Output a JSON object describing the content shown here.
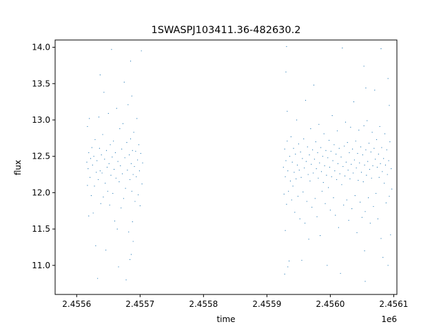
{
  "chart_data": {
    "type": "scatter",
    "title": "1SWASPJ103411.36-482630.2",
    "xlabel": "time",
    "ylabel": "flux",
    "x_offset_label": "1e6",
    "xlim": [
      2455566.0,
      2456105.0
    ],
    "ylim": [
      10.6,
      14.1
    ],
    "grid": false,
    "x_ticks": [
      {
        "value": 2455600,
        "label": "2.4556"
      },
      {
        "value": 2455700,
        "label": "2.4557"
      },
      {
        "value": 2455800,
        "label": "2.4558"
      },
      {
        "value": 2455900,
        "label": "2.4559"
      },
      {
        "value": 2456000,
        "label": "2.4560"
      },
      {
        "value": 2456100,
        "label": "2.4561"
      }
    ],
    "y_ticks": [
      {
        "value": 11.0,
        "label": "11.0"
      },
      {
        "value": 11.5,
        "label": "11.5"
      },
      {
        "value": 12.0,
        "label": "12.0"
      },
      {
        "value": 12.5,
        "label": "12.5"
      },
      {
        "value": 13.0,
        "label": "13.0"
      },
      {
        "value": 13.5,
        "label": "13.5"
      },
      {
        "value": 14.0,
        "label": "14.0"
      }
    ],
    "series": [
      {
        "color": "#1f77b4",
        "marker_size": 1,
        "points": [
          [
            2455616,
            12.42
          ],
          [
            2455617,
            12.1
          ],
          [
            2455617,
            12.91
          ],
          [
            2455618,
            12.33
          ],
          [
            2455619,
            11.68
          ],
          [
            2455619,
            12.55
          ],
          [
            2455620,
            13.02
          ],
          [
            2455621,
            12.21
          ],
          [
            2455622,
            12.47
          ],
          [
            2455623,
            11.96
          ],
          [
            2455624,
            12.62
          ],
          [
            2455625,
            12.38
          ],
          [
            2455626,
            11.72
          ],
          [
            2455627,
            12.5
          ],
          [
            2455628,
            12.09
          ],
          [
            2455629,
            12.73
          ],
          [
            2455630,
            11.27
          ],
          [
            2455631,
            12.28
          ],
          [
            2455632,
            12.44
          ],
          [
            2455633,
            10.82
          ],
          [
            2455634,
            12.18
          ],
          [
            2455635,
            13.04
          ],
          [
            2455636,
            12.61
          ],
          [
            2455637,
            12.3
          ],
          [
            2455637,
            13.62
          ],
          [
            2455638,
            11.85
          ],
          [
            2455639,
            12.52
          ],
          [
            2455640,
            12.27
          ],
          [
            2455641,
            12.8
          ],
          [
            2455642,
            11.94
          ],
          [
            2455643,
            13.38
          ],
          [
            2455644,
            12.46
          ],
          [
            2455645,
            12.13
          ],
          [
            2455646,
            11.21
          ],
          [
            2455647,
            12.58
          ],
          [
            2455648,
            12.35
          ],
          [
            2455649,
            12.02
          ],
          [
            2455650,
            13.09
          ],
          [
            2455651,
            12.4
          ],
          [
            2455652,
            11.83
          ],
          [
            2455653,
            12.66
          ],
          [
            2455654,
            12.24
          ],
          [
            2455655,
            13.97
          ],
          [
            2455656,
            12.49
          ],
          [
            2455657,
            11.99
          ],
          [
            2455658,
            12.71
          ],
          [
            2455659,
            12.32
          ],
          [
            2455660,
            11.61
          ],
          [
            2455661,
            12.55
          ],
          [
            2455662,
            12.2
          ],
          [
            2455663,
            13.16
          ],
          [
            2455664,
            11.5
          ],
          [
            2455665,
            12.43
          ],
          [
            2455666,
            10.98
          ],
          [
            2455667,
            12.15
          ],
          [
            2455668,
            12.88
          ],
          [
            2455669,
            12.37
          ],
          [
            2455670,
            11.79
          ],
          [
            2455671,
            12.6
          ],
          [
            2455672,
            12.26
          ],
          [
            2455673,
            12.95
          ],
          [
            2455674,
            11.92
          ],
          [
            2455675,
            13.52
          ],
          [
            2455676,
            12.48
          ],
          [
            2455677,
            12.06
          ],
          [
            2455678,
            10.8
          ],
          [
            2455679,
            12.69
          ],
          [
            2455680,
            12.31
          ],
          [
            2455681,
            13.21
          ],
          [
            2455682,
            11.46
          ],
          [
            2455683,
            12.52
          ],
          [
            2455684,
            11.08
          ],
          [
            2455684,
            12.18
          ],
          [
            2455685,
            13.81
          ],
          [
            2455685,
            12.74
          ],
          [
            2455686,
            11.15
          ],
          [
            2455686,
            12.4
          ],
          [
            2455687,
            12.02
          ],
          [
            2455687,
            13.33
          ],
          [
            2455688,
            11.6
          ],
          [
            2455688,
            12.58
          ],
          [
            2455689,
            12.25
          ],
          [
            2455689,
            11.33
          ],
          [
            2455690,
            12.83
          ],
          [
            2455691,
            12.36
          ],
          [
            2455692,
            11.88
          ],
          [
            2455693,
            12.57
          ],
          [
            2455694,
            12.22
          ],
          [
            2455695,
            13.02
          ],
          [
            2455696,
            12.45
          ],
          [
            2455697,
            11.97
          ],
          [
            2455698,
            12.66
          ],
          [
            2455699,
            12.3
          ],
          [
            2455700,
            11.82
          ],
          [
            2455701,
            12.54
          ],
          [
            2455702,
            13.95
          ],
          [
            2455703,
            12.12
          ],
          [
            2455704,
            12.41
          ],
          [
            2455926,
            12.35
          ],
          [
            2455927,
            11.98
          ],
          [
            2455928,
            10.88
          ],
          [
            2455928,
            12.6
          ],
          [
            2455929,
            12.22
          ],
          [
            2455929,
            11.48
          ],
          [
            2455930,
            13.66
          ],
          [
            2455930,
            12.44
          ],
          [
            2455931,
            14.01
          ],
          [
            2455931,
            11.84
          ],
          [
            2455932,
            12.71
          ],
          [
            2455932,
            13.12
          ],
          [
            2455933,
            10.98
          ],
          [
            2455933,
            12.3
          ],
          [
            2455934,
            12.02
          ],
          [
            2455935,
            11.06
          ],
          [
            2455936,
            12.5
          ],
          [
            2455937,
            12.16
          ],
          [
            2455938,
            12.77
          ],
          [
            2455939,
            11.9
          ],
          [
            2455940,
            12.42
          ],
          [
            2455941,
            12.09
          ],
          [
            2455942,
            12.61
          ],
          [
            2455943,
            12.28
          ],
          [
            2455944,
            11.73
          ],
          [
            2455945,
            12.53
          ],
          [
            2455946,
            12.19
          ],
          [
            2455947,
            13.0
          ],
          [
            2455948,
            12.38
          ],
          [
            2455949,
            11.95
          ],
          [
            2455950,
            12.67
          ],
          [
            2455951,
            12.31
          ],
          [
            2455952,
            11.64
          ],
          [
            2455953,
            12.56
          ],
          [
            2455954,
            12.21
          ],
          [
            2455955,
            11.07
          ],
          [
            2455956,
            12.47
          ],
          [
            2455957,
            12.01
          ],
          [
            2455958,
            12.74
          ],
          [
            2455959,
            12.34
          ],
          [
            2455960,
            11.58
          ],
          [
            2455961,
            13.27
          ],
          [
            2455962,
            12.43
          ],
          [
            2455963,
            11.88
          ],
          [
            2455964,
            12.63
          ],
          [
            2455965,
            12.25
          ],
          [
            2455966,
            11.36
          ],
          [
            2455967,
            12.52
          ],
          [
            2455968,
            12.16
          ],
          [
            2455969,
            12.88
          ],
          [
            2455970,
            12.39
          ],
          [
            2455971,
            11.8
          ],
          [
            2455972,
            12.59
          ],
          [
            2455973,
            12.27
          ],
          [
            2455974,
            13.48
          ],
          [
            2455975,
            12.46
          ],
          [
            2455976,
            11.92
          ],
          [
            2455977,
            12.7
          ],
          [
            2455978,
            12.33
          ],
          [
            2455979,
            11.67
          ],
          [
            2455980,
            12.55
          ],
          [
            2455981,
            12.2
          ],
          [
            2455982,
            12.94
          ],
          [
            2455983,
            12.41
          ],
          [
            2455984,
            11.41
          ],
          [
            2455985,
            12.62
          ],
          [
            2455986,
            12.29
          ],
          [
            2455987,
            12.02
          ],
          [
            2455988,
            12.5
          ],
          [
            2455989,
            12.14
          ],
          [
            2455990,
            12.81
          ],
          [
            2455991,
            12.37
          ],
          [
            2455992,
            11.85
          ],
          [
            2455993,
            12.58
          ],
          [
            2455994,
            12.24
          ],
          [
            2455995,
            11.0
          ],
          [
            2455996,
            12.48
          ],
          [
            2455997,
            12.07
          ],
          [
            2455998,
            12.72
          ],
          [
            2455999,
            12.35
          ],
          [
            2456000,
            11.76
          ],
          [
            2456001,
            12.57
          ],
          [
            2456002,
            12.22
          ],
          [
            2456003,
            13.06
          ],
          [
            2456004,
            12.44
          ],
          [
            2456005,
            11.93
          ],
          [
            2456006,
            12.66
          ],
          [
            2456007,
            12.3
          ],
          [
            2456008,
            11.69
          ],
          [
            2456009,
            12.53
          ],
          [
            2456010,
            12.18
          ],
          [
            2456011,
            12.85
          ],
          [
            2456012,
            12.4
          ],
          [
            2456013,
            11.52
          ],
          [
            2456014,
            12.61
          ],
          [
            2456015,
            12.26
          ],
          [
            2456016,
            10.89
          ],
          [
            2456017,
            12.49
          ],
          [
            2456018,
            12.11
          ],
          [
            2456019,
            13.99
          ],
          [
            2456020,
            12.36
          ],
          [
            2456021,
            11.83
          ],
          [
            2456022,
            12.64
          ],
          [
            2456023,
            12.23
          ],
          [
            2456024,
            12.97
          ],
          [
            2456025,
            12.42
          ],
          [
            2456026,
            11.9
          ],
          [
            2456027,
            12.69
          ],
          [
            2456028,
            12.31
          ],
          [
            2456029,
            11.62
          ],
          [
            2456030,
            12.55
          ],
          [
            2456031,
            12.19
          ],
          [
            2456032,
            12.9
          ],
          [
            2456033,
            12.39
          ],
          [
            2456034,
            11.78
          ],
          [
            2456035,
            12.6
          ],
          [
            2456036,
            12.27
          ],
          [
            2456037,
            13.25
          ],
          [
            2456038,
            12.45
          ],
          [
            2456039,
            11.96
          ],
          [
            2456040,
            12.71
          ],
          [
            2456041,
            12.34
          ],
          [
            2456042,
            11.45
          ],
          [
            2456043,
            12.54
          ],
          [
            2456044,
            12.17
          ],
          [
            2456045,
            12.86
          ],
          [
            2456046,
            12.41
          ],
          [
            2456047,
            11.87
          ],
          [
            2456048,
            12.63
          ],
          [
            2456049,
            12.28
          ],
          [
            2456050,
            11.66
          ],
          [
            2456051,
            12.52
          ],
          [
            2456052,
            12.15
          ],
          [
            2456053,
            13.74
          ],
          [
            2456053,
            12.92
          ],
          [
            2456054,
            12.38
          ],
          [
            2456054,
            11.2
          ],
          [
            2456055,
            11.74
          ],
          [
            2456055,
            10.78
          ],
          [
            2456056,
            12.59
          ],
          [
            2456056,
            13.44
          ],
          [
            2456057,
            12.24
          ],
          [
            2456058,
            12.99
          ],
          [
            2456059,
            12.43
          ],
          [
            2456060,
            11.93
          ],
          [
            2456061,
            12.68
          ],
          [
            2456062,
            12.32
          ],
          [
            2456063,
            11.58
          ],
          [
            2456064,
            12.56
          ],
          [
            2456065,
            12.2
          ],
          [
            2456066,
            12.83
          ],
          [
            2456067,
            12.37
          ],
          [
            2456068,
            11.81
          ],
          [
            2456069,
            12.61
          ],
          [
            2456070,
            13.41
          ],
          [
            2456071,
            12.46
          ],
          [
            2456072,
            11.99
          ],
          [
            2456073,
            12.73
          ],
          [
            2456074,
            12.35
          ],
          [
            2456075,
            11.64
          ],
          [
            2456076,
            12.53
          ],
          [
            2456077,
            12.21
          ],
          [
            2456078,
            12.91
          ],
          [
            2456079,
            12.4
          ],
          [
            2456080,
            11.37
          ],
          [
            2456080,
            13.98
          ],
          [
            2456081,
            12.62
          ],
          [
            2456082,
            12.29
          ],
          [
            2456083,
            11.11
          ],
          [
            2456084,
            12.47
          ],
          [
            2456085,
            12.13
          ],
          [
            2456086,
            12.81
          ],
          [
            2456087,
            12.38
          ],
          [
            2456088,
            11.86
          ],
          [
            2456089,
            12.59
          ],
          [
            2456090,
            12.25
          ],
          [
            2456091,
            13.57
          ],
          [
            2456091,
            11.0
          ],
          [
            2456092,
            12.44
          ],
          [
            2456093,
            11.95
          ],
          [
            2456093,
            13.2
          ],
          [
            2456094,
            12.7
          ],
          [
            2456095,
            11.42
          ],
          [
            2456096,
            12.33
          ],
          [
            2456097,
            12.05
          ]
        ]
      }
    ]
  }
}
